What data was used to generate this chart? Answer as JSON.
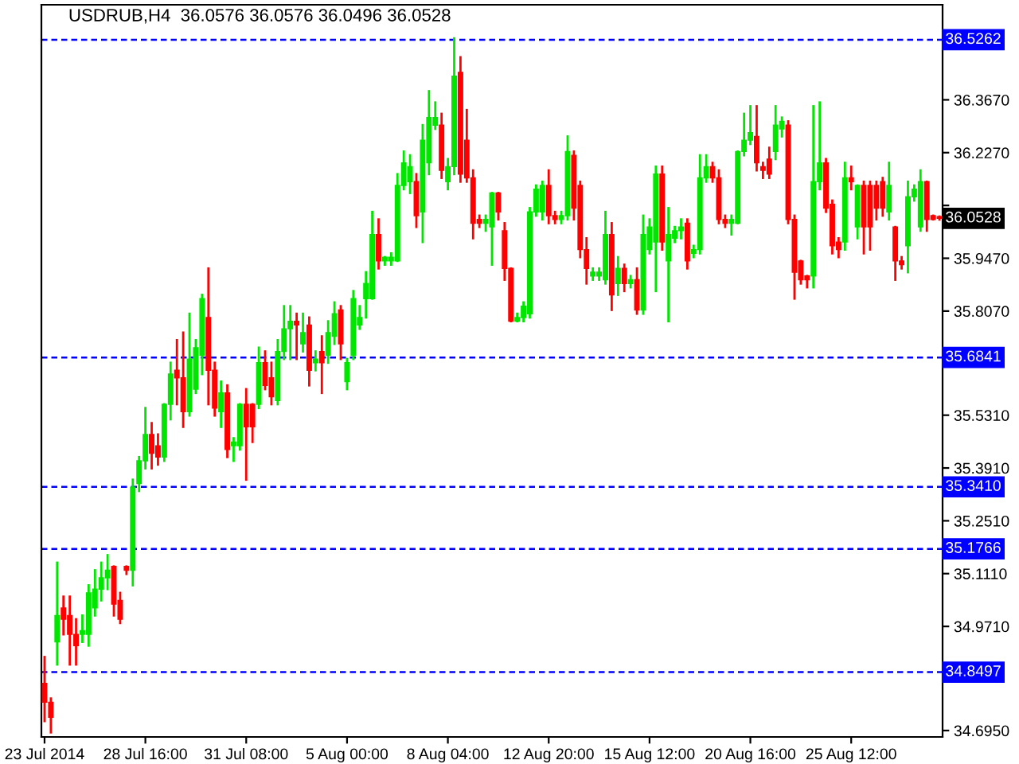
{
  "chart_data": {
    "type": "candlestick",
    "title": "USDRUB,H4  36.0576 36.0576 36.0496 36.0528",
    "categories": [
      "23 Jul 2014",
      null,
      null,
      null,
      null,
      null,
      null,
      null,
      null,
      null,
      null,
      null,
      null,
      null,
      null,
      null,
      "28 Jul 16:00",
      null,
      null,
      null,
      null,
      null,
      null,
      null,
      null,
      null,
      null,
      null,
      null,
      null,
      null,
      null,
      "31 Jul 08:00",
      null,
      null,
      null,
      null,
      null,
      null,
      null,
      null,
      null,
      null,
      null,
      null,
      null,
      null,
      null,
      "5 Aug 00:00",
      null,
      null,
      null,
      null,
      null,
      null,
      null,
      null,
      null,
      null,
      null,
      null,
      null,
      null,
      null,
      "8 Aug 04:00",
      null,
      null,
      null,
      null,
      null,
      null,
      null,
      null,
      null,
      null,
      null,
      null,
      null,
      null,
      null,
      "12 Aug 20:00",
      null,
      null,
      null,
      null,
      null,
      null,
      null,
      null,
      null,
      null,
      null,
      null,
      null,
      null,
      null,
      "15 Aug 12:00",
      null,
      null,
      null,
      null,
      null,
      null,
      null,
      null,
      null,
      null,
      null,
      null,
      null,
      null,
      null,
      "20 Aug 16:00",
      null,
      null,
      null,
      null,
      null,
      null,
      null,
      null,
      null,
      null,
      null,
      null,
      null,
      null,
      null,
      "25 Aug 12:00",
      null,
      null,
      null,
      null,
      null,
      null,
      null,
      null,
      null,
      null,
      null,
      null,
      null,
      null
    ],
    "ohlc": [
      [
        34.82,
        34.89,
        34.72,
        34.77
      ],
      [
        34.77,
        34.78,
        34.69,
        34.73
      ],
      [
        34.93,
        35.14,
        34.87,
        35.0
      ],
      [
        35.02,
        35.05,
        34.95,
        34.99
      ],
      [
        35.0,
        35.05,
        34.87,
        34.95
      ],
      [
        34.95,
        34.99,
        34.87,
        34.92
      ],
      [
        34.95,
        35.0,
        34.93,
        34.96
      ],
      [
        34.95,
        35.08,
        34.92,
        35.06
      ],
      [
        35.02,
        35.12,
        35.0,
        35.07
      ],
      [
        35.07,
        35.14,
        35.04,
        35.1
      ],
      [
        35.1,
        35.16,
        35.07,
        35.12
      ],
      [
        35.13,
        35.13,
        35.0,
        35.03
      ],
      [
        35.04,
        35.06,
        34.98,
        34.99
      ],
      [
        35.13,
        35.13,
        35.11,
        35.12
      ],
      [
        35.12,
        35.36,
        35.08,
        35.34
      ],
      [
        35.35,
        35.42,
        35.33,
        35.41
      ],
      [
        35.41,
        35.55,
        35.39,
        35.48
      ],
      [
        35.48,
        35.51,
        35.39,
        35.43
      ],
      [
        35.45,
        35.48,
        35.4,
        35.42
      ],
      [
        35.42,
        35.56,
        35.41,
        35.56
      ],
      [
        35.56,
        35.67,
        35.52,
        35.64
      ],
      [
        35.65,
        35.73,
        35.56,
        35.63
      ],
      [
        35.63,
        35.75,
        35.5,
        35.54
      ],
      [
        35.54,
        35.8,
        35.53,
        35.68
      ],
      [
        35.6,
        35.73,
        35.59,
        35.71
      ],
      [
        35.69,
        35.85,
        35.64,
        35.84
      ],
      [
        35.79,
        35.92,
        35.56,
        35.65
      ],
      [
        35.65,
        35.67,
        35.53,
        35.55
      ],
      [
        35.54,
        35.62,
        35.5,
        35.59
      ],
      [
        35.59,
        35.61,
        35.42,
        35.44
      ],
      [
        35.45,
        35.47,
        35.41,
        35.46
      ],
      [
        35.45,
        35.56,
        35.44,
        35.56
      ],
      [
        35.56,
        35.6,
        35.36,
        35.5
      ],
      [
        35.56,
        35.56,
        35.46,
        35.5
      ],
      [
        35.56,
        35.71,
        35.55,
        35.67
      ],
      [
        35.67,
        35.7,
        35.6,
        35.61
      ],
      [
        35.63,
        35.67,
        35.56,
        35.58
      ],
      [
        35.57,
        35.73,
        35.56,
        35.7
      ],
      [
        35.7,
        35.82,
        35.68,
        35.76
      ],
      [
        35.76,
        35.82,
        35.68,
        35.78
      ],
      [
        35.78,
        35.8,
        35.68,
        35.77
      ],
      [
        35.72,
        35.8,
        35.7,
        35.75
      ],
      [
        35.77,
        35.79,
        35.61,
        35.65
      ],
      [
        35.67,
        35.7,
        35.65,
        35.68
      ],
      [
        35.7,
        35.74,
        35.59,
        35.67
      ],
      [
        35.69,
        35.78,
        35.67,
        35.75
      ],
      [
        35.74,
        35.83,
        35.72,
        35.8
      ],
      [
        35.81,
        35.82,
        35.68,
        35.72
      ],
      [
        35.62,
        35.68,
        35.6,
        35.67
      ],
      [
        35.69,
        35.86,
        35.68,
        35.84
      ],
      [
        35.77,
        35.82,
        35.76,
        35.79
      ],
      [
        35.84,
        35.91,
        35.79,
        35.88
      ],
      [
        35.84,
        36.07,
        35.84,
        36.01
      ],
      [
        36.01,
        36.05,
        35.92,
        35.94
      ],
      [
        35.94,
        35.95,
        35.93,
        35.95
      ],
      [
        35.94,
        35.96,
        35.93,
        35.95
      ],
      [
        35.94,
        36.17,
        35.94,
        36.14
      ],
      [
        36.14,
        36.23,
        36.13,
        36.2
      ],
      [
        36.15,
        36.22,
        36.12,
        36.19
      ],
      [
        36.15,
        36.17,
        36.03,
        36.06
      ],
      [
        36.07,
        36.3,
        35.99,
        36.26
      ],
      [
        36.2,
        36.39,
        36.17,
        36.32
      ],
      [
        36.3,
        36.36,
        36.29,
        36.32
      ],
      [
        36.3,
        36.33,
        36.16,
        36.18
      ],
      [
        36.15,
        36.21,
        36.13,
        36.19
      ],
      [
        36.19,
        36.53,
        36.17,
        36.43
      ],
      [
        36.44,
        36.48,
        36.15,
        36.17
      ],
      [
        36.26,
        36.34,
        36.15,
        36.16
      ],
      [
        36.16,
        36.18,
        36.0,
        36.04
      ],
      [
        36.05,
        36.06,
        36.03,
        36.04
      ],
      [
        36.04,
        36.06,
        36.02,
        36.05
      ],
      [
        36.03,
        36.12,
        35.93,
        36.12
      ],
      [
        36.12,
        36.12,
        36.05,
        36.07
      ],
      [
        36.02,
        36.04,
        35.89,
        35.92
      ],
      [
        35.92,
        35.92,
        35.78,
        35.78
      ],
      [
        35.78,
        35.8,
        35.78,
        35.79
      ],
      [
        35.79,
        35.83,
        35.78,
        35.82
      ],
      [
        35.8,
        36.08,
        35.79,
        36.07
      ],
      [
        36.07,
        36.14,
        36.06,
        36.13
      ],
      [
        36.07,
        36.15,
        36.05,
        36.14
      ],
      [
        36.14,
        36.18,
        36.04,
        36.06
      ],
      [
        36.06,
        36.07,
        36.04,
        36.05
      ],
      [
        36.05,
        36.07,
        36.04,
        36.06
      ],
      [
        36.06,
        36.27,
        36.05,
        36.23
      ],
      [
        36.22,
        36.23,
        36.05,
        36.08
      ],
      [
        36.14,
        36.15,
        35.95,
        35.97
      ],
      [
        35.97,
        36.0,
        35.88,
        35.92
      ],
      [
        35.9,
        35.92,
        35.89,
        35.91
      ],
      [
        35.9,
        35.92,
        35.89,
        35.91
      ],
      [
        35.89,
        36.07,
        35.88,
        36.01
      ],
      [
        36.01,
        36.04,
        35.81,
        35.85
      ],
      [
        35.88,
        35.95,
        35.85,
        35.92
      ],
      [
        35.92,
        35.93,
        35.86,
        35.88
      ],
      [
        35.88,
        35.9,
        35.87,
        35.89
      ],
      [
        35.89,
        35.92,
        35.8,
        35.81
      ],
      [
        35.81,
        36.06,
        35.8,
        36.01
      ],
      [
        35.97,
        36.05,
        35.96,
        36.03
      ],
      [
        35.99,
        36.19,
        35.86,
        36.17
      ],
      [
        36.17,
        36.19,
        35.97,
        35.99
      ],
      [
        35.94,
        36.08,
        35.78,
        36.01
      ],
      [
        36.0,
        36.03,
        35.99,
        36.02
      ],
      [
        36.02,
        36.05,
        36.0,
        36.03
      ],
      [
        36.04,
        36.05,
        35.92,
        35.94
      ],
      [
        35.96,
        35.98,
        35.95,
        35.97
      ],
      [
        35.97,
        36.22,
        35.96,
        36.16
      ],
      [
        36.16,
        36.22,
        36.15,
        36.19
      ],
      [
        36.19,
        36.2,
        36.15,
        36.16
      ],
      [
        36.16,
        36.18,
        36.04,
        36.05
      ],
      [
        36.05,
        36.06,
        36.03,
        36.04
      ],
      [
        36.04,
        36.06,
        36.01,
        36.05
      ],
      [
        36.04,
        36.23,
        36.04,
        36.23
      ],
      [
        36.23,
        36.33,
        36.22,
        36.26
      ],
      [
        36.26,
        36.35,
        36.25,
        36.28
      ],
      [
        36.27,
        36.35,
        36.18,
        36.2
      ],
      [
        36.19,
        36.2,
        36.16,
        36.18
      ],
      [
        36.21,
        36.24,
        36.16,
        36.17
      ],
      [
        36.23,
        36.35,
        36.21,
        36.3
      ],
      [
        36.29,
        36.32,
        36.27,
        36.31
      ],
      [
        36.3,
        36.31,
        36.04,
        36.05
      ],
      [
        36.05,
        36.06,
        35.84,
        35.91
      ],
      [
        35.94,
        35.94,
        35.88,
        35.89
      ],
      [
        35.9,
        35.9,
        35.87,
        35.89
      ],
      [
        35.9,
        36.35,
        35.87,
        36.15
      ],
      [
        36.15,
        36.36,
        36.13,
        36.2
      ],
      [
        36.2,
        36.21,
        36.07,
        36.08
      ],
      [
        36.09,
        36.1,
        35.96,
        35.98
      ],
      [
        35.99,
        36.0,
        35.95,
        35.97
      ],
      [
        35.99,
        36.2,
        35.97,
        36.16
      ],
      [
        36.16,
        36.19,
        36.13,
        36.15
      ],
      [
        36.03,
        36.14,
        36.0,
        36.14
      ],
      [
        36.14,
        36.15,
        35.96,
        36.03
      ],
      [
        36.14,
        36.15,
        35.97,
        36.03
      ],
      [
        36.14,
        36.15,
        36.05,
        36.08
      ],
      [
        36.15,
        36.16,
        36.06,
        36.08
      ],
      [
        36.07,
        36.2,
        36.05,
        36.14
      ],
      [
        36.03,
        36.03,
        35.89,
        35.94
      ],
      [
        35.94,
        35.95,
        35.92,
        35.93
      ],
      [
        35.98,
        36.15,
        35.91,
        36.11
      ],
      [
        36.11,
        36.14,
        36.1,
        36.13
      ],
      [
        36.03,
        36.18,
        36.02,
        36.15
      ],
      [
        36.15,
        36.15,
        36.02,
        36.05
      ],
      [
        36.06,
        36.06,
        36.05,
        36.05
      ],
      [
        36.0576,
        36.0576,
        36.0496,
        36.0528
      ]
    ],
    "ylim": [
      34.678,
      36.619
    ],
    "yticks": [
      {
        "value": 36.367,
        "label": "36.3670"
      },
      {
        "value": 36.227,
        "label": "36.2270"
      },
      {
        "value": 36.087,
        "label": null
      },
      {
        "value": 35.947,
        "label": "35.9470"
      },
      {
        "value": 35.807,
        "label": "35.8070"
      },
      {
        "value": 35.531,
        "label": "35.5310"
      },
      {
        "value": 35.391,
        "label": "35.3910"
      },
      {
        "value": 35.251,
        "label": "35.2510"
      },
      {
        "value": 35.111,
        "label": "35.1110"
      },
      {
        "value": 34.971,
        "label": "34.9710"
      },
      {
        "value": 34.695,
        "label": "34.6950"
      }
    ],
    "ref_lines": [
      {
        "axis": "y",
        "value": 36.5262,
        "label": "36.5262",
        "color": "#0000ff",
        "line_style": "dashed"
      },
      {
        "axis": "y",
        "value": 35.6841,
        "label": "35.6841",
        "color": "#0000ff",
        "line_style": "dashed"
      },
      {
        "axis": "y",
        "value": 35.341,
        "label": "35.3410",
        "color": "#0000ff",
        "line_style": "dashed"
      },
      {
        "axis": "y",
        "value": 35.1766,
        "label": "35.1766",
        "color": "#0000ff",
        "line_style": "dashed"
      },
      {
        "axis": "y",
        "value": 34.8497,
        "label": "34.8497",
        "color": "#0000ff",
        "line_style": "dashed"
      }
    ],
    "annotations": [
      "36.0528"
    ],
    "grid": false,
    "legend": false
  }
}
